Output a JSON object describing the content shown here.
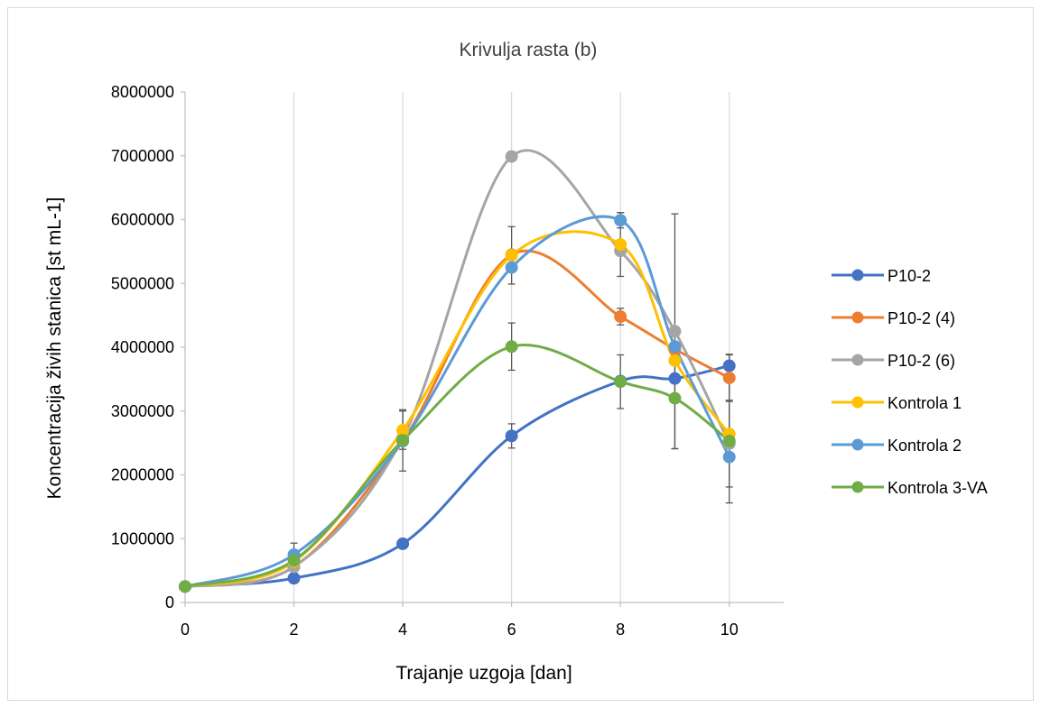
{
  "chart_data": {
    "type": "line",
    "title": "Krivulja rasta (b)",
    "xlabel": "Trajanje uzgoja [dan]",
    "ylabel": "Koncentracija živih stanica [st mL-1]",
    "xlim": [
      0,
      11
    ],
    "ylim": [
      0,
      8000000
    ],
    "xticks": [
      "0",
      "2",
      "4",
      "6",
      "8",
      "10"
    ],
    "yticks": [
      "0",
      "1000000",
      "2000000",
      "3000000",
      "4000000",
      "5000000",
      "6000000",
      "7000000",
      "8000000"
    ],
    "x": [
      0,
      2,
      4,
      6,
      8,
      9,
      10
    ],
    "grid": "vertical",
    "legend_position": "right",
    "smooth": true,
    "error_bars": true,
    "series": [
      {
        "name": "P10-2",
        "color": "#4472C4",
        "values": [
          250000,
          380000,
          920000,
          2610000,
          3470000,
          3510000,
          3710000
        ],
        "errors": [
          0,
          0,
          0,
          190000,
          0,
          70000,
          170000
        ]
      },
      {
        "name": "P10-2 (4)",
        "color": "#ED7D31",
        "values": [
          250000,
          560000,
          2530000,
          5450000,
          4480000,
          3970000,
          3520000
        ],
        "errors": [
          0,
          0,
          0,
          0,
          130000,
          0,
          370000
        ]
      },
      {
        "name": "P10-2 (6)",
        "color": "#A5A5A5",
        "values": [
          250000,
          560000,
          2580000,
          6990000,
          5510000,
          4250000,
          2490000
        ],
        "errors": [
          0,
          0,
          0,
          50000,
          0,
          1840000,
          680000
        ]
      },
      {
        "name": "Kontrola 1",
        "color": "#FFC000",
        "values": [
          250000,
          640000,
          2700000,
          5440000,
          5610000,
          3790000,
          2640000
        ],
        "errors": [
          0,
          0,
          300000,
          450000,
          500000,
          0,
          0
        ]
      },
      {
        "name": "Kontrola 2",
        "color": "#5B9BD5",
        "values": [
          250000,
          750000,
          2530000,
          5250000,
          5990000,
          4010000,
          2280000
        ],
        "errors": [
          0,
          180000,
          0,
          0,
          120000,
          0,
          0
        ]
      },
      {
        "name": "Kontrola 3-VA",
        "color": "#70AD47",
        "values": [
          250000,
          660000,
          2540000,
          4010000,
          3460000,
          3200000,
          2530000
        ],
        "errors": [
          0,
          0,
          480000,
          370000,
          420000,
          790000,
          970000
        ]
      }
    ]
  }
}
